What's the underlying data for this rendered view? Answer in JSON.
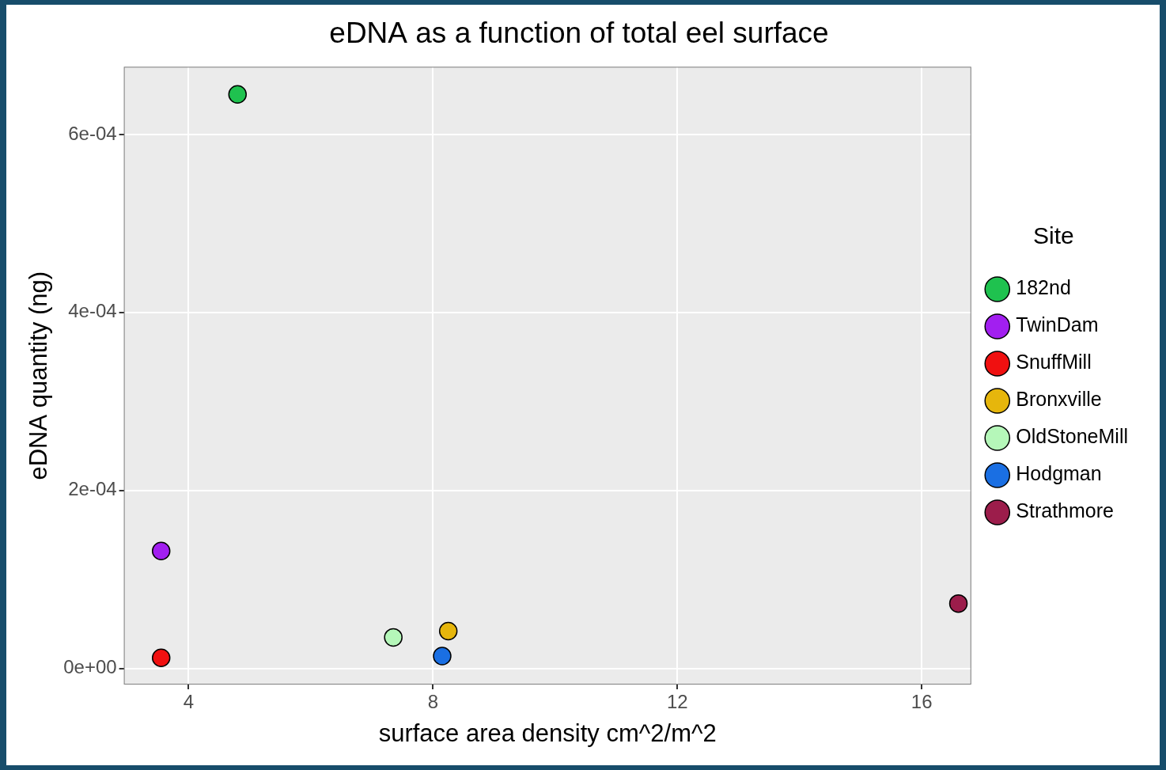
{
  "chart_data": {
    "type": "scatter",
    "title": "eDNA as a function of total eel surface",
    "x_label": "surface area density cm^2/m^2",
    "y_label": "eDNA quantity (ng)",
    "legend_title": "Site",
    "legend": "right",
    "grid": true,
    "marker": "circle",
    "xlim": [
      2.94,
      16.81
    ],
    "xticks": [
      4,
      8,
      12,
      16
    ],
    "ylim": [
      -1.8e-05,
      0.000676
    ],
    "yticks": [
      {
        "value": 0,
        "label": "0e+00"
      },
      {
        "value": 0.0002,
        "label": "2e-04"
      },
      {
        "value": 0.0004,
        "label": "4e-04"
      },
      {
        "value": 0.0006,
        "label": "6e-04"
      }
    ],
    "series": [
      {
        "name": "182nd",
        "color": "#1fc24f",
        "x": [
          4.8
        ],
        "values": [
          0.000645
        ]
      },
      {
        "name": "TwinDam",
        "color": "#a21ff0",
        "x": [
          3.55
        ],
        "values": [
          0.000132
        ]
      },
      {
        "name": "SnuffMill",
        "color": "#f01010",
        "x": [
          3.55
        ],
        "values": [
          1.2e-05
        ]
      },
      {
        "name": "Bronxville",
        "color": "#e6b60c",
        "x": [
          8.25
        ],
        "values": [
          4.2e-05
        ]
      },
      {
        "name": "OldStoneMill",
        "color": "#b5f7b9",
        "x": [
          7.35
        ],
        "values": [
          3.5e-05
        ]
      },
      {
        "name": "Hodgman",
        "color": "#1a6fe3",
        "x": [
          8.15
        ],
        "values": [
          1.4e-05
        ]
      },
      {
        "name": "Strathmore",
        "color": "#9c1d4b",
        "x": [
          16.6
        ],
        "values": [
          7.3e-05
        ]
      }
    ]
  }
}
